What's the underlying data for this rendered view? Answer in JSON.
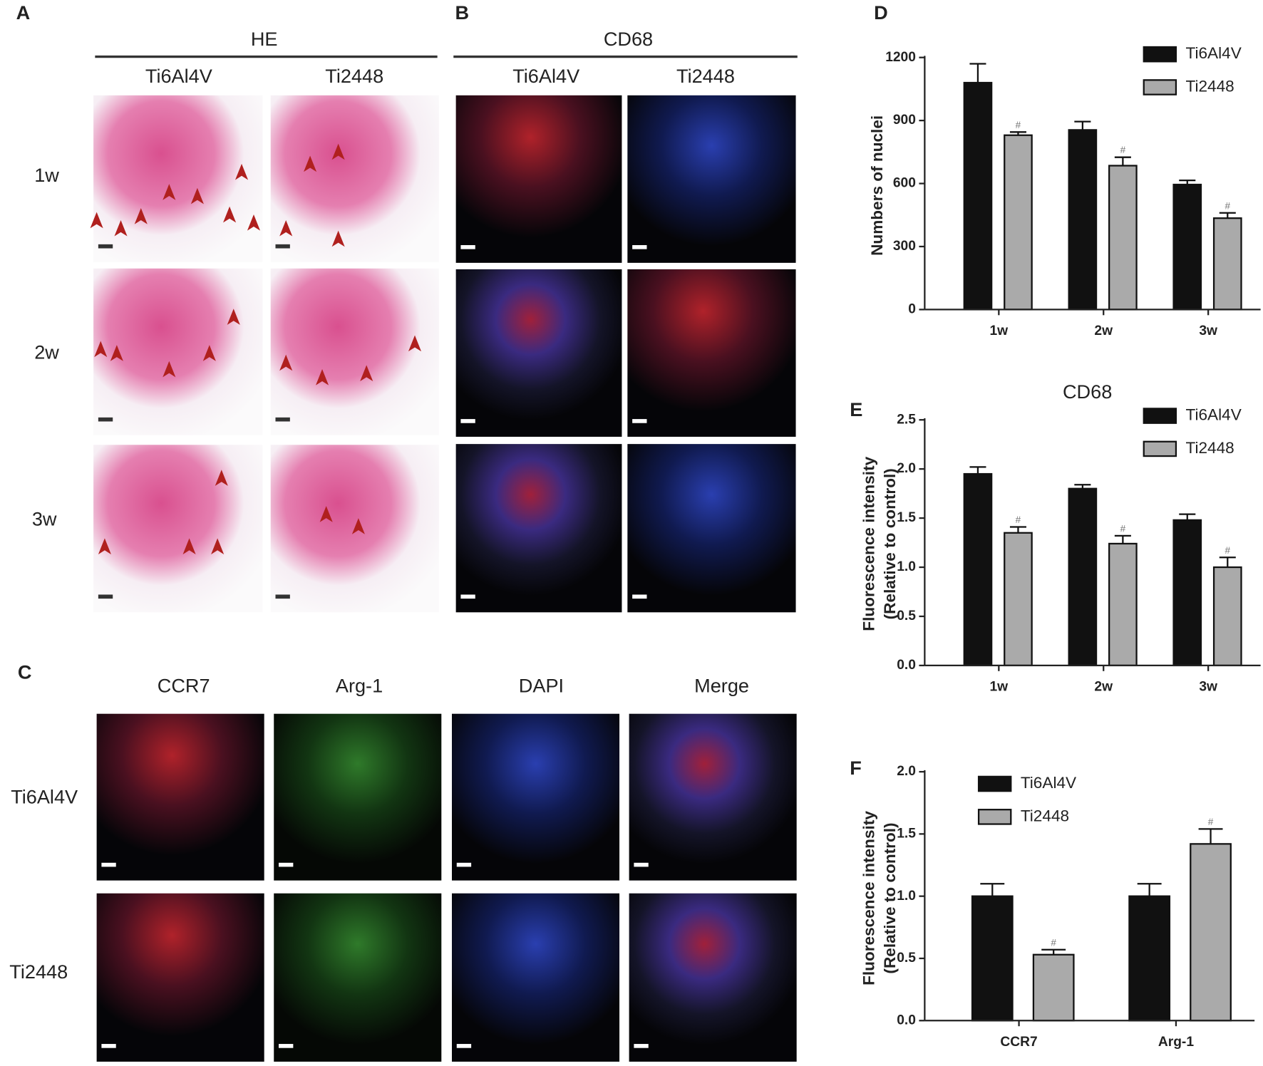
{
  "panels": {
    "A": {
      "label": "A",
      "title": "HE",
      "columns": [
        "Ti6Al4V",
        "Ti2448"
      ],
      "rows": [
        "1w",
        "2w",
        "3w"
      ]
    },
    "B": {
      "label": "B",
      "title": "CD68",
      "columns": [
        "Ti6Al4V",
        "Ti2448"
      ]
    },
    "C": {
      "label": "C",
      "columns": [
        "CCR7",
        "Arg-1",
        "DAPI",
        "Merge"
      ],
      "rows": [
        "Ti6Al4V",
        "Ti2448"
      ]
    }
  },
  "chart_data": [
    {
      "type": "bar",
      "panel_label": "D",
      "ylabel": [
        "Numbers of nuclei"
      ],
      "categories": [
        "1w",
        "2w",
        "3w"
      ],
      "ylim": [
        0,
        1200
      ],
      "yticks": [
        0,
        300,
        600,
        900,
        1200
      ],
      "legend": "top-right",
      "series": [
        {
          "name": "Ti6Al4V",
          "color": "#111111",
          "values": [
            1080,
            855,
            595
          ],
          "errors": [
            90,
            40,
            20
          ]
        },
        {
          "name": "Ti2448",
          "color": "#aaaaaa",
          "values": [
            830,
            685,
            435
          ],
          "errors": [
            15,
            40,
            25
          ],
          "annotations": [
            "#",
            "#",
            "#"
          ]
        }
      ]
    },
    {
      "type": "bar",
      "panel_label": "E",
      "title": "CD68",
      "ylabel": [
        "Fluorescence intensity",
        "(Relative to control)"
      ],
      "categories": [
        "1w",
        "2w",
        "3w"
      ],
      "ylim": [
        0,
        2.5
      ],
      "yticks": [
        {
          "value": 0,
          "label": "0.0"
        },
        0.5,
        {
          "value": 1,
          "label": "1.0"
        },
        1.5,
        {
          "value": 2,
          "label": "2.0"
        },
        2.5
      ],
      "legend": "top-right",
      "series": [
        {
          "name": "Ti6Al4V",
          "color": "#111111",
          "values": [
            1.95,
            1.8,
            1.48
          ],
          "errors": [
            0.07,
            0.04,
            0.06
          ]
        },
        {
          "name": "Ti2448",
          "color": "#aaaaaa",
          "values": [
            1.35,
            1.24,
            1.0
          ],
          "errors": [
            0.06,
            0.08,
            0.1
          ],
          "annotations": [
            "#",
            "#",
            "#"
          ]
        }
      ]
    },
    {
      "type": "bar",
      "panel_label": "F",
      "ylabel": [
        "Fluorescence intensity",
        "(Relative to control)"
      ],
      "categories": [
        "CCR7",
        "Arg-1"
      ],
      "ylim": [
        0,
        2
      ],
      "yticks": [
        {
          "value": 0,
          "label": "0.0"
        },
        0.5,
        {
          "value": 1,
          "label": "1.0"
        },
        1.5,
        {
          "value": 2,
          "label": "2.0"
        }
      ],
      "legend": "top-left",
      "series": [
        {
          "name": "Ti6Al4V",
          "color": "#111111",
          "values": [
            1.0,
            1.0
          ],
          "errors": [
            0.1,
            0.1
          ]
        },
        {
          "name": "Ti2448",
          "color": "#aaaaaa",
          "values": [
            0.53,
            1.42
          ],
          "errors": [
            0.04,
            0.12
          ],
          "annotations": [
            "#",
            "#"
          ]
        }
      ]
    }
  ]
}
